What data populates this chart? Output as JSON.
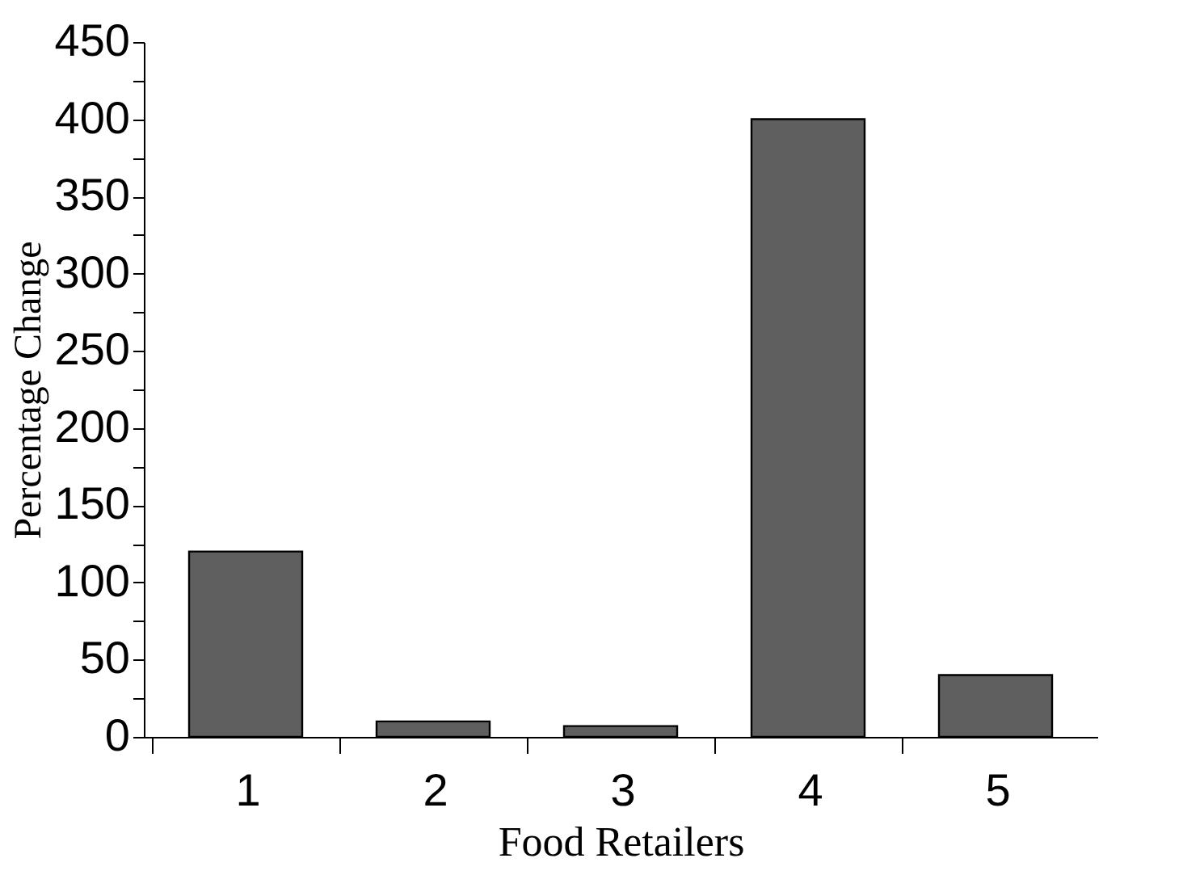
{
  "chart_data": {
    "type": "bar",
    "xlabel": "Food Retailers",
    "ylabel": "Percentage Change",
    "categories": [
      "1",
      "2",
      "3",
      "4",
      "5"
    ],
    "values": [
      120,
      10,
      7,
      400,
      40
    ],
    "color": "#5f5f5f",
    "ylim": [
      0,
      450
    ],
    "yticks": [
      0,
      {
        "value": 25,
        "label": null
      },
      50,
      {
        "value": 75,
        "label": null
      },
      100,
      {
        "value": 125,
        "label": null
      },
      150,
      {
        "value": 175,
        "label": null
      },
      200,
      {
        "value": 225,
        "label": null
      },
      250,
      {
        "value": 275,
        "label": null
      },
      300,
      {
        "value": 325,
        "label": null
      },
      350,
      {
        "value": 375,
        "label": null
      },
      400,
      {
        "value": 425,
        "label": null
      },
      450
    ],
    "grid": false
  }
}
